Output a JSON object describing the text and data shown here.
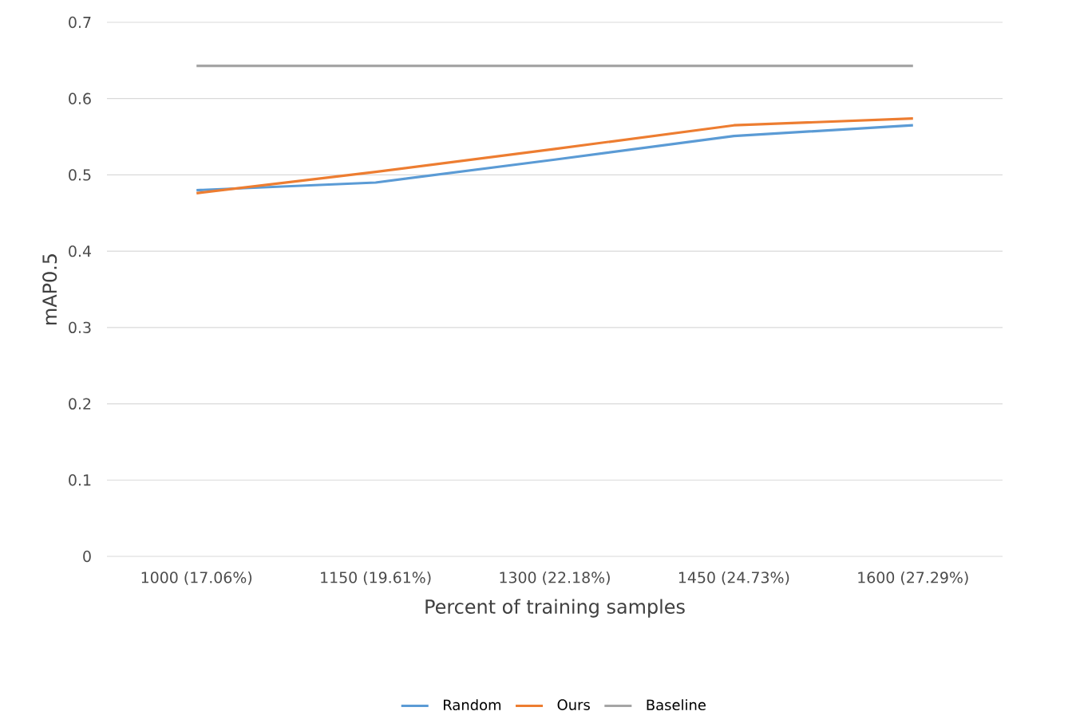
{
  "chart_data": {
    "type": "line",
    "xlabel": "Percent of training samples",
    "ylabel": "mAP0.5",
    "categories": [
      "1000  (17.06%)",
      "1150  (19.61%)",
      "1300  (22.18%)",
      "1450  (24.73%)",
      "1600  (27.29%)"
    ],
    "series": [
      {
        "name": "Random",
        "color": "#5b9bd5",
        "values": [
          0.48,
          0.49,
          0.52,
          0.551,
          0.565
        ]
      },
      {
        "name": "Ours",
        "color": "#ed7d31",
        "values": [
          0.476,
          0.504,
          0.534,
          0.565,
          0.574
        ]
      },
      {
        "name": "Baseline",
        "color": "#a5a5a5",
        "values": [
          0.643,
          0.643,
          0.643,
          0.643,
          0.643
        ]
      }
    ],
    "ylim": [
      0,
      0.7
    ],
    "yticks": [
      0,
      0.1,
      0.2,
      0.3,
      0.4,
      0.5,
      0.6,
      0.7
    ],
    "grid": "y",
    "legend": "bottom"
  }
}
